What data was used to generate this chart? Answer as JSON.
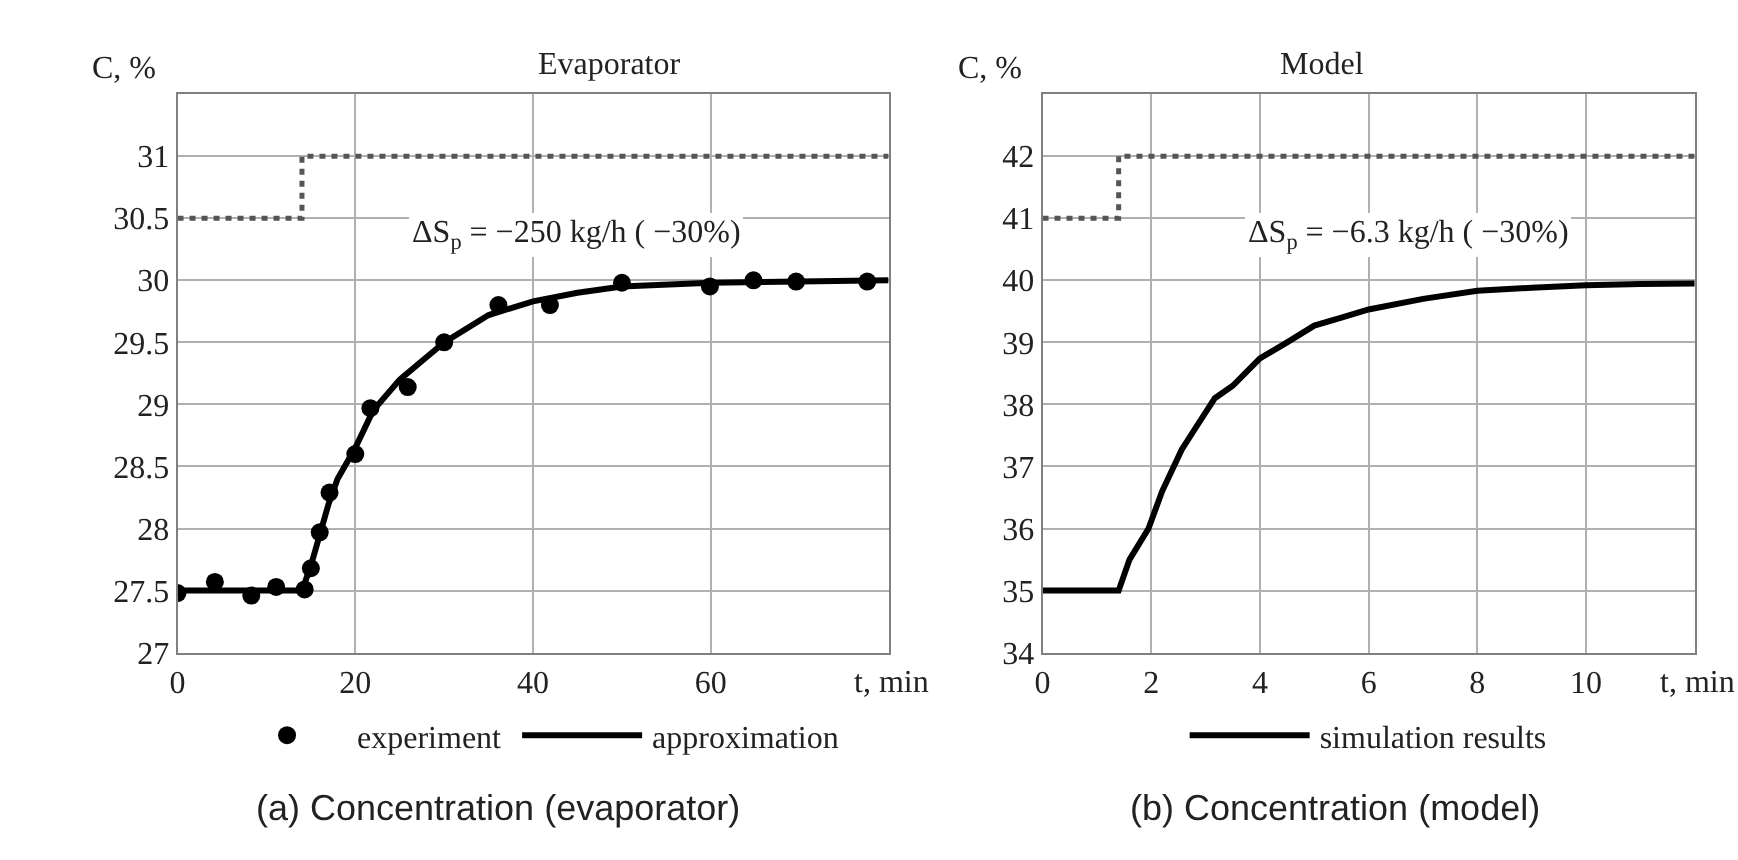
{
  "chart_data": [
    {
      "type": "line",
      "title": "Evaporator",
      "xlabel": "t, min",
      "ylabel": "C, %",
      "xlim": [
        0,
        80
      ],
      "xticks": [
        0,
        20,
        40,
        60
      ],
      "ylim": [
        27,
        31.5
      ],
      "yticks": [
        27,
        27.5,
        28,
        28.5,
        29,
        29.5,
        30,
        30.5,
        31
      ],
      "grid": true,
      "legend": "bottom",
      "annotations": [
        "ΔS$_{p}$ = −250 kg/h ( −30%)",
        "(a) Concentration (evaporator)"
      ],
      "series": [
        {
          "line_style": "dotted",
          "color": "#555555",
          "x": [
            0,
            14,
            14,
            80
          ],
          "values": [
            30.5,
            30.5,
            31,
            31
          ]
        },
        {
          "name": "experiment",
          "type": "scatter",
          "marker": "circle",
          "color": "#000000",
          "x": [
            0,
            4.2,
            8.3,
            11.1,
            14.3,
            15,
            16,
            17.1,
            20,
            21.7,
            25.9,
            30,
            36.1,
            41.9,
            50,
            59.9,
            64.8,
            69.6,
            77.6
          ],
          "values": [
            27.48,
            27.57,
            27.46,
            27.53,
            27.51,
            27.68,
            27.97,
            28.29,
            28.6,
            28.97,
            29.14,
            29.5,
            29.8,
            29.8,
            29.98,
            29.95,
            30.0,
            29.99,
            29.99
          ]
        },
        {
          "name": "approximation",
          "line_style": "solid",
          "color": "#000000",
          "x": [
            0,
            14,
            15,
            16,
            17,
            18,
            20,
            22,
            25,
            28,
            30,
            35,
            40,
            45,
            50,
            60,
            70,
            80
          ],
          "values": [
            27.5,
            27.5,
            27.7,
            27.95,
            28.2,
            28.4,
            28.65,
            28.95,
            29.2,
            29.38,
            29.5,
            29.72,
            29.83,
            29.9,
            29.95,
            29.98,
            29.99,
            30.0
          ]
        }
      ]
    },
    {
      "type": "line",
      "title": "Model",
      "xlabel": "t, min",
      "ylabel": "C, %",
      "xlim": [
        0,
        12
      ],
      "xticks": [
        0,
        2,
        4,
        6,
        8,
        10
      ],
      "ylim": [
        34,
        43
      ],
      "yticks": [
        34,
        35,
        36,
        37,
        38,
        39,
        40,
        41,
        42
      ],
      "grid": true,
      "legend": "bottom",
      "annotations": [
        "ΔS$_{p}$ = −6.3 kg/h ( −30%)",
        "(b) Concentration (model)"
      ],
      "series": [
        {
          "line_style": "dotted",
          "color": "#555555",
          "x": [
            0,
            1.4,
            1.4,
            12
          ],
          "values": [
            41,
            41,
            42,
            42
          ]
        },
        {
          "name": "simulation results",
          "line_style": "solid",
          "color": "#000000",
          "x": [
            0,
            1.4,
            1.6,
            1.95,
            2.2,
            2.56,
            2.8,
            3.17,
            3.5,
            4,
            4.5,
            5,
            5.5,
            6,
            7,
            8,
            9,
            10,
            11,
            12
          ],
          "values": [
            35,
            35,
            35.5,
            36.0,
            36.6,
            37.27,
            37.6,
            38.1,
            38.3,
            38.74,
            39.0,
            39.27,
            39.4,
            39.53,
            39.7,
            39.83,
            39.88,
            39.92,
            39.94,
            39.95
          ]
        }
      ]
    }
  ]
}
